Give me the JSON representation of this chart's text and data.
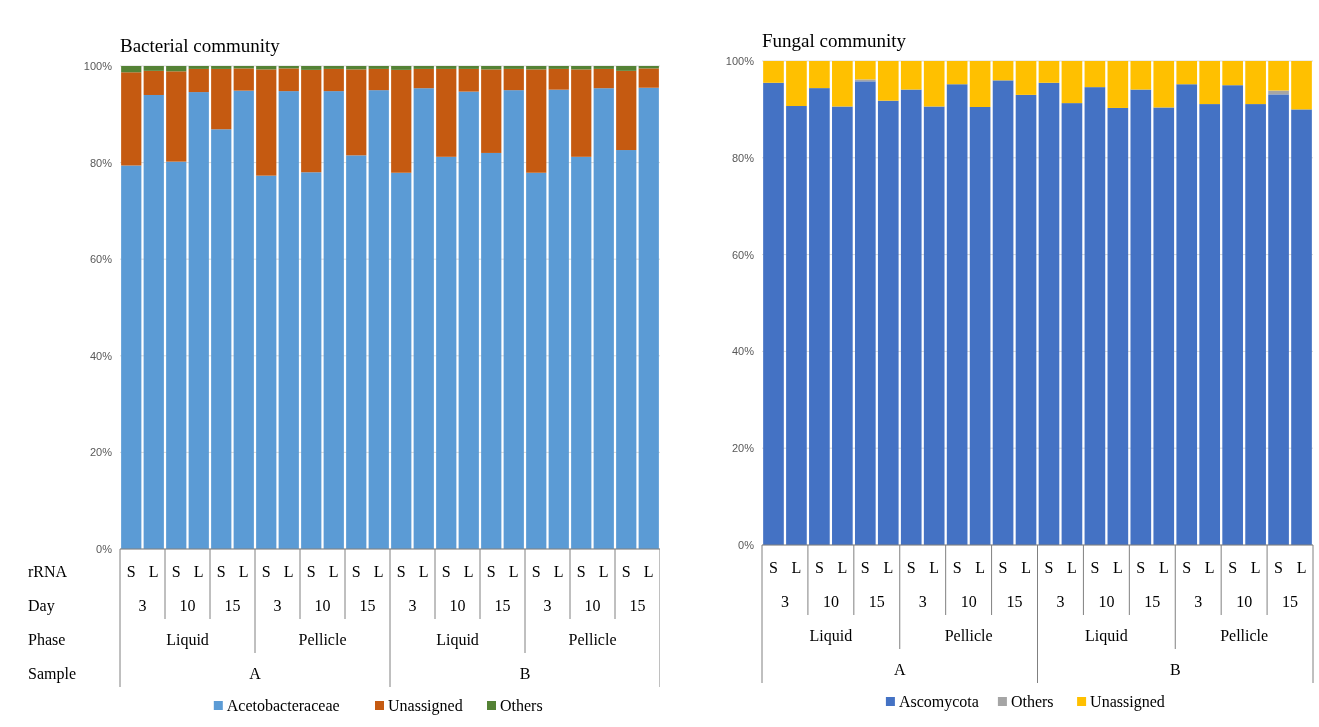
{
  "chart_data": [
    {
      "type": "bar",
      "title": "Bacterial community",
      "stacked": true,
      "grid": "y",
      "legend": "bottom",
      "xlabel": "rRNA",
      "categories": [
        "S",
        "L",
        "S",
        "L",
        "S",
        "L",
        "S",
        "L",
        "S",
        "L",
        "S",
        "L",
        "S",
        "L",
        "S",
        "L",
        "S",
        "L",
        "S",
        "L",
        "S",
        "L",
        "S",
        "L"
      ],
      "annotations": [
        "Day",
        "3",
        "10",
        "15",
        "3",
        "10",
        "15",
        "3",
        "10",
        "15",
        "3",
        "10",
        "15",
        "Phase",
        "Liquid",
        "Pellicle",
        "Liquid",
        "Pellicle",
        "Sample",
        "A",
        "B"
      ],
      "ylim": [
        0,
        100
      ],
      "yticks": [
        {
          "value": 0,
          "label": "0%"
        },
        {
          "value": 20,
          "label": "20%"
        },
        {
          "value": 40,
          "label": "40%"
        },
        {
          "value": 60,
          "label": "60%"
        },
        {
          "value": 80,
          "label": "80%"
        },
        {
          "value": 100,
          "label": "100%"
        }
      ],
      "series": [
        {
          "name": "Acetobacteraceae",
          "color": "#5b9bd5",
          "values": [
            79.4,
            94.0,
            80.2,
            94.6,
            86.9,
            94.9,
            77.3,
            94.8,
            78.0,
            94.8,
            81.5,
            95.0,
            77.9,
            95.4,
            81.2,
            94.7,
            82.0,
            95.0,
            77.9,
            95.1,
            81.2,
            95.4,
            82.6,
            95.5
          ]
        },
        {
          "name": "Unassigned",
          "color": "#c55a11",
          "values": [
            19.3,
            5.0,
            18.7,
            4.8,
            12.5,
            4.6,
            22.0,
            4.7,
            21.2,
            4.6,
            17.8,
            4.4,
            21.3,
            4.0,
            18.2,
            4.7,
            17.3,
            4.4,
            21.4,
            4.3,
            18.1,
            4.0,
            16.4,
            4.0
          ]
        },
        {
          "name": "Others",
          "color": "#548235",
          "values": [
            1.3,
            1.0,
            1.1,
            0.6,
            0.6,
            0.5,
            0.7,
            0.5,
            0.8,
            0.6,
            0.7,
            0.6,
            0.8,
            0.6,
            0.6,
            0.6,
            0.7,
            0.6,
            0.7,
            0.6,
            0.7,
            0.6,
            1.0,
            0.5
          ]
        }
      ]
    },
    {
      "type": "bar",
      "title": "Fungal community",
      "stacked": true,
      "grid": "y",
      "legend": "bottom",
      "categories": [
        "S",
        "L",
        "S",
        "L",
        "S",
        "L",
        "S",
        "L",
        "S",
        "L",
        "S",
        "L",
        "S",
        "L",
        "S",
        "L",
        "S",
        "L",
        "S",
        "L",
        "S",
        "L",
        "S",
        "L"
      ],
      "annotations": [
        "3",
        "10",
        "15",
        "3",
        "10",
        "15",
        "3",
        "10",
        "15",
        "3",
        "10",
        "15",
        "Liquid",
        "Pellicle",
        "Liquid",
        "Pellicle",
        "A",
        "B"
      ],
      "ylim": [
        0,
        100
      ],
      "yticks": [
        {
          "value": 0,
          "label": "0%"
        },
        {
          "value": 20,
          "label": "20%"
        },
        {
          "value": 40,
          "label": "40%"
        },
        {
          "value": 60,
          "label": "60%"
        },
        {
          "value": 80,
          "label": "80%"
        },
        {
          "value": 100,
          "label": "100%"
        }
      ],
      "series": [
        {
          "name": "Ascomycota",
          "color": "#4472c4",
          "values": [
            95.5,
            90.7,
            94.4,
            90.6,
            95.8,
            91.8,
            94.1,
            90.6,
            95.2,
            90.5,
            96.0,
            93.0,
            95.5,
            91.3,
            94.6,
            90.3,
            94.1,
            90.4,
            95.2,
            91.1,
            95.0,
            91.1,
            93.1,
            90.0
          ]
        },
        {
          "name": "Others",
          "color": "#a5a5a5",
          "values": [
            null,
            0,
            0,
            0,
            0.4,
            0,
            0,
            0,
            0,
            0,
            0,
            0,
            null,
            0,
            0,
            0,
            0,
            0,
            0,
            0,
            0,
            0,
            0.8,
            0
          ]
        },
        {
          "name": "Unassigned",
          "color": "#ffc000",
          "values": [
            4.5,
            9.3,
            5.6,
            9.4,
            3.8,
            8.2,
            5.9,
            9.4,
            4.8,
            9.5,
            4.0,
            7.0,
            4.5,
            8.7,
            5.4,
            9.7,
            5.9,
            9.6,
            4.8,
            8.9,
            5.0,
            8.9,
            6.1,
            10.0
          ]
        }
      ]
    }
  ]
}
